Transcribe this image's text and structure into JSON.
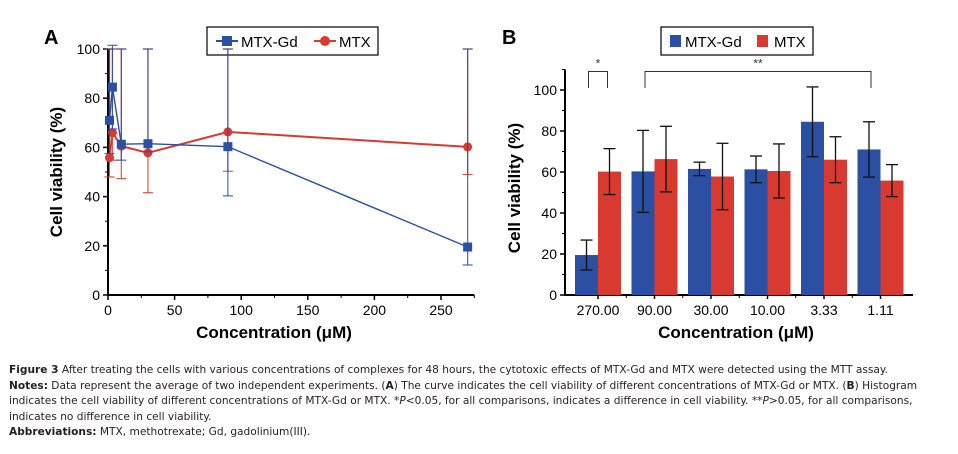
{
  "chart_data": [
    {
      "panel": "A",
      "type": "line",
      "xlabel": "Concentration (μM)",
      "ylabel": "Cell viability (%)",
      "xlim": [
        0,
        275
      ],
      "ylim": [
        0,
        100
      ],
      "xticks": [
        0,
        50,
        100,
        150,
        200,
        250
      ],
      "yticks": [
        0,
        20,
        40,
        60,
        80,
        100
      ],
      "grid": false,
      "legend_position": "top-center",
      "series": [
        {
          "name": "MTX-Gd",
          "color": "#2b4fa2",
          "marker": "square",
          "x": [
            1.11,
            3.33,
            10,
            30,
            90,
            270
          ],
          "y": [
            71,
            84.5,
            61.3,
            61.5,
            60.3,
            19.5
          ],
          "err": [
            13.5,
            17,
            6.5,
            3.3,
            20,
            7.3
          ]
        },
        {
          "name": "MTX",
          "color": "#d93a30",
          "marker": "circle",
          "x": [
            1.11,
            3.33,
            10,
            30,
            90,
            270
          ],
          "y": [
            55.8,
            66,
            60.5,
            57.8,
            66.3,
            60.2
          ],
          "err": [
            7.8,
            11.2,
            13.2,
            16.2,
            16,
            11.2
          ]
        }
      ]
    },
    {
      "panel": "B",
      "type": "bar",
      "xlabel": "Concentration (μM)",
      "ylabel": "Cell viability (%)",
      "ylim": [
        0,
        110
      ],
      "yticks": [
        0,
        20,
        40,
        60,
        80,
        100
      ],
      "grid": false,
      "legend_position": "top-center",
      "categories": [
        "270.00",
        "90.00",
        "30.00",
        "10.00",
        "3.33",
        "1.11"
      ],
      "series": [
        {
          "name": "MTX-Gd",
          "color": "#2b4fa2",
          "values": [
            19.5,
            60.3,
            61.5,
            61.3,
            84.5,
            71
          ],
          "err": [
            7.3,
            20,
            3.3,
            6.5,
            17,
            13.5
          ]
        },
        {
          "name": "MTX",
          "color": "#d93a30",
          "values": [
            60.2,
            66.3,
            57.8,
            60.5,
            66,
            55.8
          ],
          "err": [
            11.2,
            16,
            16.2,
            13.2,
            11.2,
            7.8
          ]
        }
      ],
      "annotations": [
        {
          "label": "*",
          "from_category": 0,
          "to_category": 0,
          "y": 104
        },
        {
          "label": "**",
          "from_category": 1,
          "to_category": 5,
          "y": 104
        }
      ]
    }
  ],
  "caption": {
    "figure_label": "Figure 3",
    "figure_text": " After treating the cells with various concentrations of complexes for 48 hours, the cytotoxic effects of MTX-Gd and MTX were detected using the MTT assay.",
    "notes_label": "Notes:",
    "notes_1": " Data represent the average of two independent experiments. (",
    "notes_a": "A",
    "notes_2": ") The curve indicates the cell viability of different concentrations of MTX-Gd or MTX. (",
    "notes_b": "B",
    "notes_3": ") Histogram indicates the cell viability of different concentrations of MTX-Gd or MTX. *",
    "notes_p1": "P",
    "notes_4": "<0.05, for all comparisons, indicates a difference in cell viability. **",
    "notes_p2": "P",
    "notes_5": ">0.05, for all comparisons, indicates no difference in cell viability.",
    "abbr_label": "Abbreviations:",
    "abbr_text": " MTX, methotrexate; Gd, gadolinium(III)."
  }
}
